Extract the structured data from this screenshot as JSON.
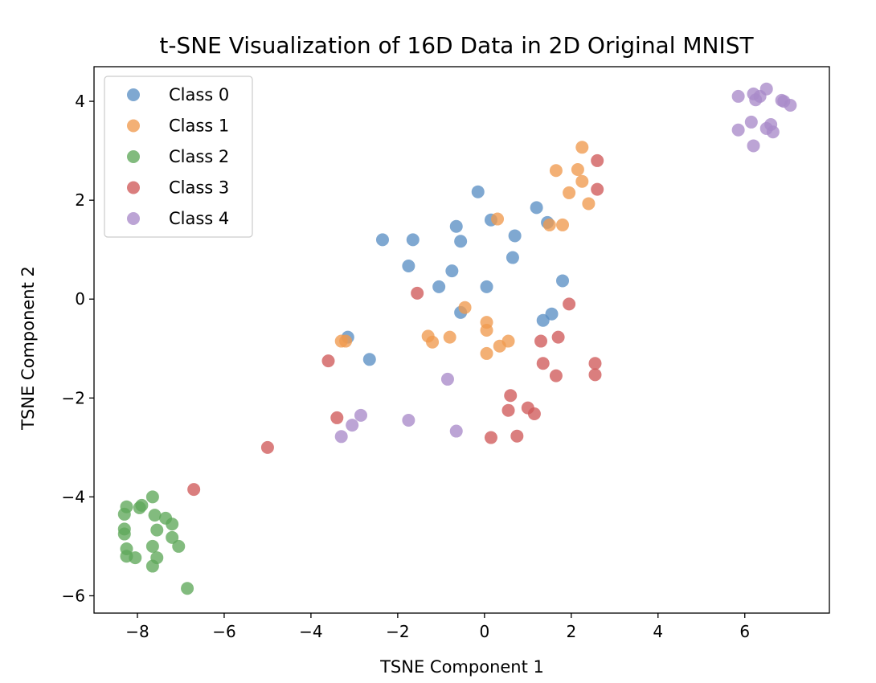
{
  "chart_data": {
    "type": "scatter",
    "title": "t-SNE Visualization of 16D Data in 2D Original MNIST",
    "xlabel": "TSNE Component 1",
    "ylabel": "TSNE Component 2",
    "xlim": [
      -9.0,
      7.95
    ],
    "ylim": [
      -6.35,
      4.7
    ],
    "xticks": [
      -8,
      -6,
      -4,
      -2,
      0,
      2,
      4,
      6
    ],
    "yticks": [
      -6,
      -4,
      -2,
      0,
      2,
      4
    ],
    "grid": false,
    "legend_position": "top-left",
    "series": [
      {
        "name": "Class 0",
        "color": "#5b8fc4",
        "points": [
          [
            -0.15,
            2.17
          ],
          [
            0.15,
            1.6
          ],
          [
            -0.65,
            1.47
          ],
          [
            0.7,
            1.28
          ],
          [
            1.2,
            1.85
          ],
          [
            1.45,
            1.55
          ],
          [
            -2.35,
            1.2
          ],
          [
            -1.65,
            1.2
          ],
          [
            -0.55,
            1.17
          ],
          [
            -1.75,
            0.67
          ],
          [
            0.65,
            0.84
          ],
          [
            -0.75,
            0.57
          ],
          [
            -1.05,
            0.25
          ],
          [
            0.05,
            0.25
          ],
          [
            1.8,
            0.37
          ],
          [
            -0.55,
            -0.27
          ],
          [
            1.55,
            -0.3
          ],
          [
            1.35,
            -0.43
          ],
          [
            -3.15,
            -0.77
          ],
          [
            -2.65,
            -1.22
          ]
        ]
      },
      {
        "name": "Class 1",
        "color": "#f09a4e",
        "points": [
          [
            2.25,
            3.07
          ],
          [
            1.65,
            2.6
          ],
          [
            2.15,
            2.62
          ],
          [
            2.25,
            2.38
          ],
          [
            1.95,
            2.15
          ],
          [
            2.4,
            1.93
          ],
          [
            0.3,
            1.62
          ],
          [
            1.5,
            1.5
          ],
          [
            1.8,
            1.5
          ],
          [
            -0.45,
            -0.17
          ],
          [
            0.05,
            -0.47
          ],
          [
            0.05,
            -0.63
          ],
          [
            -1.3,
            -0.75
          ],
          [
            -1.2,
            -0.87
          ],
          [
            -0.8,
            -0.77
          ],
          [
            -3.2,
            -0.85
          ],
          [
            -3.3,
            -0.85
          ],
          [
            0.55,
            -0.85
          ],
          [
            0.35,
            -0.95
          ],
          [
            0.05,
            -1.1
          ]
        ]
      },
      {
        "name": "Class 2",
        "color": "#5fa85a",
        "points": [
          [
            -7.65,
            -4.0
          ],
          [
            -7.9,
            -4.17
          ],
          [
            -7.95,
            -4.22
          ],
          [
            -8.25,
            -4.2
          ],
          [
            -8.3,
            -4.35
          ],
          [
            -7.6,
            -4.37
          ],
          [
            -7.35,
            -4.43
          ],
          [
            -7.2,
            -4.55
          ],
          [
            -8.3,
            -4.65
          ],
          [
            -7.55,
            -4.67
          ],
          [
            -8.3,
            -4.75
          ],
          [
            -7.2,
            -4.82
          ],
          [
            -8.25,
            -5.05
          ],
          [
            -7.65,
            -5.0
          ],
          [
            -7.05,
            -5.0
          ],
          [
            -8.25,
            -5.2
          ],
          [
            -8.05,
            -5.23
          ],
          [
            -7.55,
            -5.23
          ],
          [
            -7.65,
            -5.4
          ],
          [
            -6.85,
            -5.85
          ]
        ]
      },
      {
        "name": "Class 3",
        "color": "#d05a5a",
        "points": [
          [
            2.6,
            2.8
          ],
          [
            2.6,
            2.22
          ],
          [
            -1.55,
            0.12
          ],
          [
            1.95,
            -0.1
          ],
          [
            1.7,
            -0.77
          ],
          [
            1.3,
            -0.85
          ],
          [
            -3.6,
            -1.25
          ],
          [
            1.35,
            -1.3
          ],
          [
            2.55,
            -1.3
          ],
          [
            1.65,
            -1.55
          ],
          [
            2.55,
            -1.53
          ],
          [
            0.6,
            -1.95
          ],
          [
            1.0,
            -2.2
          ],
          [
            0.55,
            -2.25
          ],
          [
            1.15,
            -2.32
          ],
          [
            -3.4,
            -2.4
          ],
          [
            0.15,
            -2.8
          ],
          [
            0.75,
            -2.77
          ],
          [
            -5.0,
            -3.0
          ],
          [
            -6.7,
            -3.85
          ]
        ]
      },
      {
        "name": "Class 4",
        "color": "#a98bc9",
        "points": [
          [
            6.5,
            4.25
          ],
          [
            6.2,
            4.15
          ],
          [
            6.35,
            4.1
          ],
          [
            5.85,
            4.1
          ],
          [
            6.25,
            4.03
          ],
          [
            6.85,
            4.02
          ],
          [
            6.9,
            4.0
          ],
          [
            7.05,
            3.92
          ],
          [
            6.15,
            3.58
          ],
          [
            6.6,
            3.53
          ],
          [
            6.5,
            3.45
          ],
          [
            5.85,
            3.42
          ],
          [
            6.65,
            3.38
          ],
          [
            6.2,
            3.1
          ],
          [
            -0.85,
            -1.62
          ],
          [
            -2.85,
            -2.35
          ],
          [
            -1.75,
            -2.45
          ],
          [
            -3.05,
            -2.55
          ],
          [
            -0.65,
            -2.67
          ],
          [
            -3.3,
            -2.78
          ]
        ]
      }
    ]
  }
}
